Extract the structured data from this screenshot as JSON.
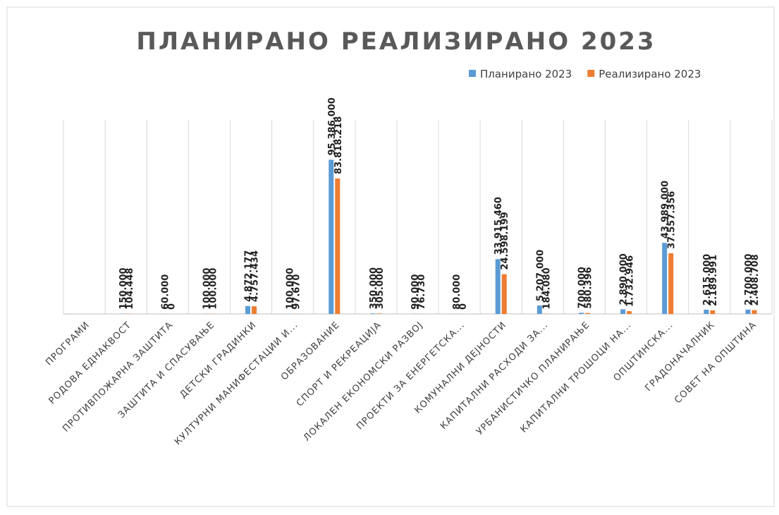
{
  "chart_data": {
    "type": "bar",
    "title": "ПЛАНИРАНО РЕАЛИЗИРАНО 2023",
    "categories": [
      "ПРОГРАМИ",
      "РОДОВА ЕДНАКВОСТ",
      "ПРОТИВПОЖАРНА ЗАШТИТА",
      "ЗАШТИТА И СПАСУВАЊЕ",
      "ДЕТСКИ ГРАДИНКИ",
      "КУЛТУРНИ МАНИФЕСТАЦИИ И...",
      "ОБРАЗОВАНИЕ",
      "СПОРТ И РЕКРЕАЦИЈА",
      "ЛОКАЛЕН ЕКОНОМСКИ РАЗВОЈ",
      "ПРОЕКТИ ЗА ЕНЕРГЕТСКА...",
      "КОМУНАЛНИ ДЕЈНОСТИ",
      "КАПИТАЛНИ РАСХОДИ ЗА...",
      "УРБАНИСТИЧКО ПЛАНИРАЊЕ",
      "КАПИТАЛНИ ТРОШОЦИ НА...",
      "ОПШТИНСКА...",
      "ГРАДОНАЧАЛНИК",
      "СОВЕТ НА ОПШТИНА"
    ],
    "series": [
      {
        "name": "Планирано 2023",
        "color": "#5b9bd5",
        "values": [
          null,
          150000,
          60000,
          100000,
          4872177,
          100000,
          95386000,
          350000,
          90000,
          80000,
          33915460,
          5207000,
          700000,
          2890000,
          43989000,
          2615000,
          2700000
        ],
        "value_labels": [
          null,
          "150.000",
          "60.000",
          "100.000",
          "4.872.177",
          "100.000",
          "95.386.000",
          "350.000",
          "90.000",
          "80.000",
          "33.915.460",
          "5.207.000",
          "700.000",
          "2.890.000",
          "43.989.000",
          "2.615.000",
          "2.700.000"
        ]
      },
      {
        "name": "Реализирано 2023",
        "color": "#ed7d31",
        "values": [
          null,
          104448,
          0,
          100000,
          4757434,
          97670,
          83818218,
          305000,
          76730,
          0,
          24598199,
          184080,
          580396,
          1732946,
          37557356,
          2189991,
          2408708
        ],
        "value_labels": [
          null,
          "104.448",
          "0",
          "100.000",
          "4.757.434",
          "97.670",
          "83.818.218",
          "305.000",
          "76.730",
          "0",
          "24.598.199",
          "184.080",
          "580.396",
          "1.732.946",
          "37.557.356",
          "2.189.991",
          "2.408.708"
        ]
      }
    ],
    "ylim": [
      0,
      120000000
    ],
    "legend": "top-right",
    "grid": true
  }
}
